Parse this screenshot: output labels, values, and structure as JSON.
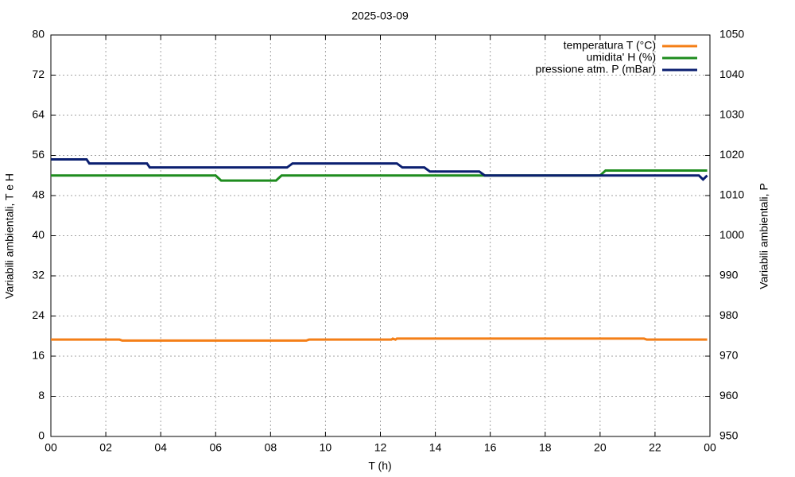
{
  "chart_data": {
    "type": "line",
    "title": "2025-03-09",
    "x_label": "T (h)",
    "y_label": "Variabili ambientali, T e H",
    "y2_label": "Variabili ambientali, P",
    "xlim": [
      0,
      24
    ],
    "xticks": [
      {
        "value": 0,
        "label": "00"
      },
      {
        "value": 2,
        "label": "02"
      },
      {
        "value": 4,
        "label": "04"
      },
      {
        "value": 6,
        "label": "06"
      },
      {
        "value": 8,
        "label": "08"
      },
      10,
      12,
      14,
      16,
      18,
      20,
      22,
      {
        "value": 24,
        "label": "00"
      }
    ],
    "ylim": [
      0,
      80
    ],
    "yticks": [
      0,
      8,
      16,
      24,
      32,
      40,
      48,
      56,
      64,
      72,
      80
    ],
    "y2lim": [
      950,
      1050
    ],
    "y2ticks": [
      950,
      960,
      970,
      980,
      990,
      1000,
      1010,
      1020,
      1030,
      1040,
      1050
    ],
    "grid": true,
    "legend": "top-right",
    "series": [
      {
        "name": "temperatura T (°C)",
        "color": "#f47f17",
        "x": [
          0,
          2.5,
          2.6,
          9.3,
          9.4,
          12.4,
          12.45,
          12.55,
          12.6,
          21.6,
          21.7,
          23.9
        ],
        "values": [
          19.3,
          19.3,
          19.1,
          19.1,
          19.3,
          19.3,
          19.5,
          19.3,
          19.5,
          19.5,
          19.3,
          19.3
        ]
      },
      {
        "name": "umidita' H (%)",
        "color": "#1e8c1e",
        "x": [
          0,
          6.0,
          6.2,
          8.2,
          8.4,
          20.0,
          20.2,
          23.9
        ],
        "values": [
          52,
          52,
          51,
          51,
          52,
          52,
          53,
          53
        ]
      },
      {
        "name": "pressione atm. P (mBar)",
        "color": "#0b1f70",
        "axis": "y2",
        "x": [
          0,
          1.3,
          1.4,
          3.5,
          3.6,
          8.6,
          8.8,
          12.6,
          12.8,
          13.6,
          13.8,
          15.6,
          15.8,
          23.6,
          23.75,
          23.9
        ],
        "values": [
          1019,
          1019,
          1018,
          1018,
          1017,
          1017,
          1018,
          1018,
          1017,
          1017,
          1016,
          1016,
          1015,
          1015,
          1014,
          1015
        ]
      }
    ]
  }
}
